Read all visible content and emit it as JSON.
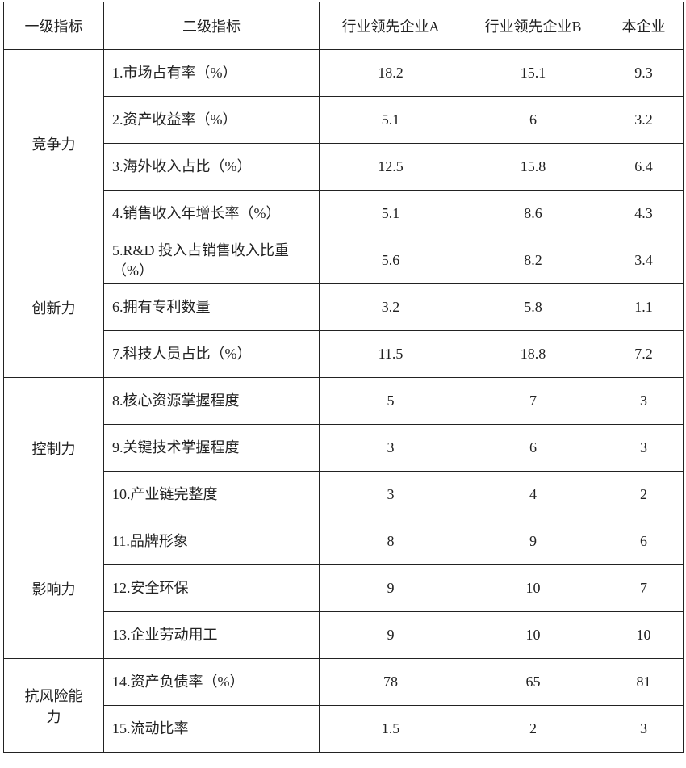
{
  "headers": [
    "一级指标",
    "二级指标",
    "行业领先企业A",
    "行业领先企业B",
    "本企业"
  ],
  "groups": [
    {
      "name": "竞争力",
      "rows": [
        {
          "indicator": "1.市场占有率（%）",
          "a": "18.2",
          "b": "15.1",
          "self": "9.3"
        },
        {
          "indicator": "2.资产收益率（%）",
          "a": "5.1",
          "b": "6",
          "self": "3.2"
        },
        {
          "indicator": "3.海外收入占比（%）",
          "a": "12.5",
          "b": "15.8",
          "self": "6.4"
        },
        {
          "indicator": "4.销售收入年增长率（%）",
          "a": "5.1",
          "b": "8.6",
          "self": "4.3"
        }
      ]
    },
    {
      "name": "创新力",
      "rows": [
        {
          "indicator": "5.R&D 投入占销售收入比重（%）",
          "a": "5.6",
          "b": "8.2",
          "self": "3.4"
        },
        {
          "indicator": "6.拥有专利数量",
          "a": "3.2",
          "b": "5.8",
          "self": "1.1"
        },
        {
          "indicator": "7.科技人员占比（%）",
          "a": "11.5",
          "b": "18.8",
          "self": "7.2"
        }
      ]
    },
    {
      "name": "控制力",
      "rows": [
        {
          "indicator": "8.核心资源掌握程度",
          "a": "5",
          "b": "7",
          "self": "3"
        },
        {
          "indicator": "9.关键技术掌握程度",
          "a": "3",
          "b": "6",
          "self": "3"
        },
        {
          "indicator": "10.产业链完整度",
          "a": "3",
          "b": "4",
          "self": "2"
        }
      ]
    },
    {
      "name": "影响力",
      "rows": [
        {
          "indicator": "11.品牌形象",
          "a": "8",
          "b": "9",
          "self": "6"
        },
        {
          "indicator": "12.安全环保",
          "a": "9",
          "b": "10",
          "self": "7"
        },
        {
          "indicator": "13.企业劳动用工",
          "a": "9",
          "b": "10",
          "self": "10"
        }
      ]
    },
    {
      "name": "抗风险能力",
      "rows": [
        {
          "indicator": "14.资产负债率（%）",
          "a": "78",
          "b": "65",
          "self": "81"
        },
        {
          "indicator": "15.流动比率",
          "a": "1.5",
          "b": "2",
          "self": "3"
        }
      ]
    }
  ]
}
